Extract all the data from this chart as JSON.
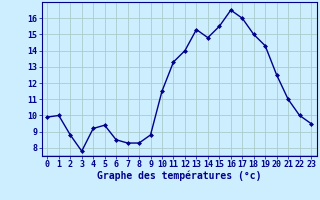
{
  "hours": [
    0,
    1,
    2,
    3,
    4,
    5,
    6,
    7,
    8,
    9,
    10,
    11,
    12,
    13,
    14,
    15,
    16,
    17,
    18,
    19,
    20,
    21,
    22,
    23
  ],
  "temps": [
    9.9,
    10.0,
    8.8,
    7.8,
    9.2,
    9.4,
    8.5,
    8.3,
    8.3,
    8.8,
    11.5,
    13.3,
    14.0,
    15.3,
    14.8,
    15.5,
    16.5,
    16.0,
    15.0,
    14.3,
    12.5,
    11.0,
    10.0,
    9.5
  ],
  "line_color": "#00008B",
  "marker": "D",
  "marker_size": 2.0,
  "linewidth": 1.0,
  "xlabel": "Graphe des températures (°c)",
  "xlabel_fontsize": 7,
  "xlabel_color": "#00008B",
  "ylabel_ticks": [
    8,
    9,
    10,
    11,
    12,
    13,
    14,
    15,
    16
  ],
  "ylim": [
    7.5,
    17.0
  ],
  "xlim": [
    -0.5,
    23.5
  ],
  "tick_color": "#00008B",
  "tick_fontsize": 6,
  "bg_color": "#cceeff",
  "grid_color": "#aacccc",
  "spine_color": "#00008B"
}
